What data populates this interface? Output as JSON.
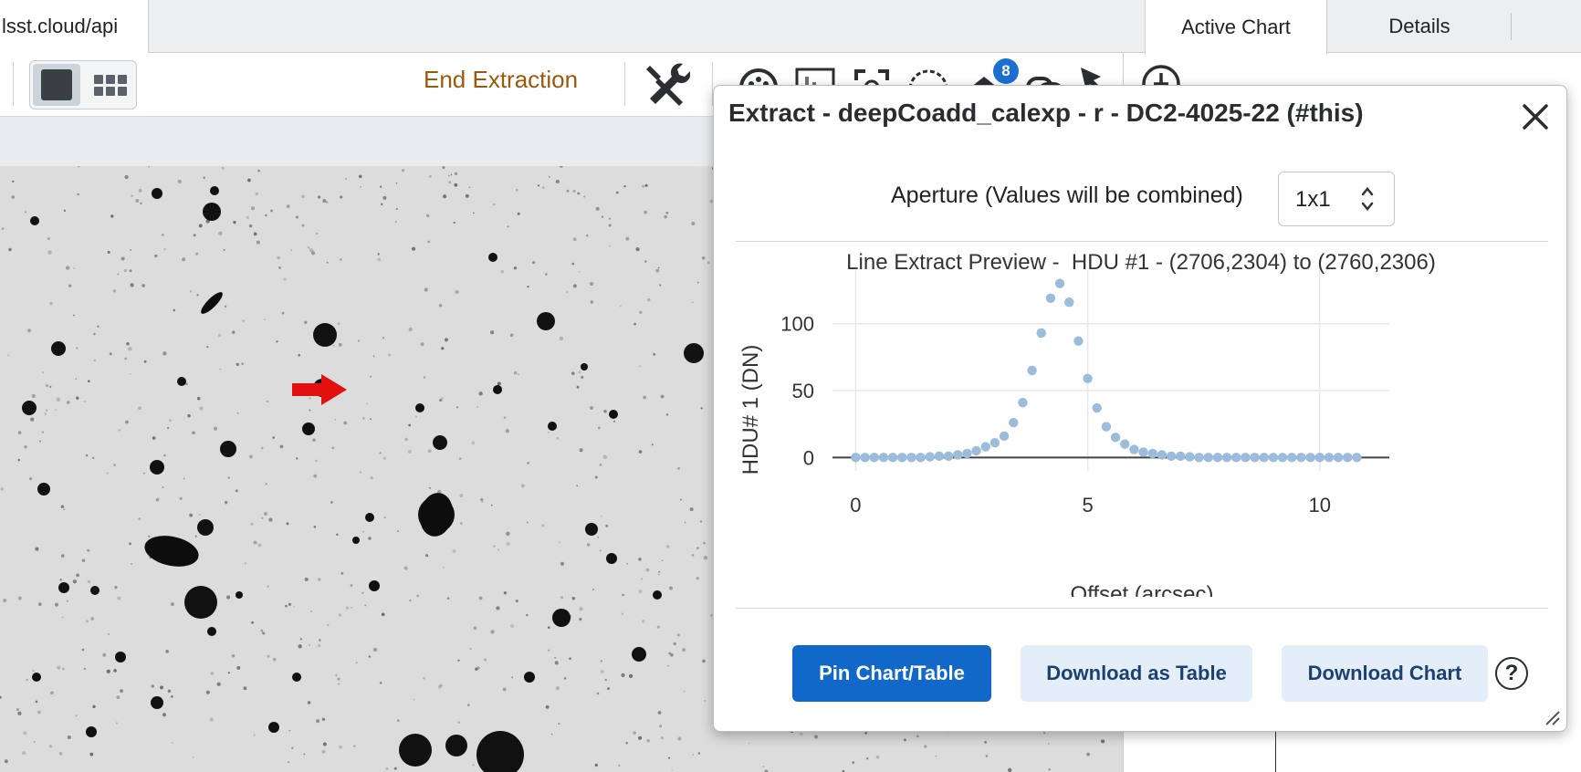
{
  "browser_tab": {
    "label": "lsst.cloud/api"
  },
  "toolbar": {
    "end_extraction_label": "End Extraction",
    "layers_badge": "8"
  },
  "right_panel": {
    "tabs": [
      "Active Chart",
      "Details"
    ]
  },
  "dialog": {
    "title": "Extract - deepCoadd_calexp - r - DC2-4025-22 (#this)",
    "aperture_label": "Aperture (Values will be combined)",
    "aperture_value": "1x1",
    "pin_label": "Pin Chart/Table",
    "download_table_label": "Download as Table",
    "download_chart_label": "Download Chart",
    "help_label": "?"
  },
  "chart_data": {
    "type": "scatter",
    "title": "Line Extract Preview -  HDU #1 - (2706,2304) to (2760,2306)",
    "xlabel": "Offset (arcsec)",
    "ylabel": "HDU# 1 (DN)",
    "xlim": [
      -0.5,
      11.5
    ],
    "ylim": [
      -10,
      140
    ],
    "xticks": [
      0,
      5,
      10
    ],
    "yticks": [
      0,
      50,
      100
    ],
    "grid": true,
    "marker_color": "#9bbcdb",
    "points": [
      [
        0.0,
        0
      ],
      [
        0.2,
        0
      ],
      [
        0.4,
        0
      ],
      [
        0.6,
        0
      ],
      [
        0.8,
        0
      ],
      [
        1.0,
        0
      ],
      [
        1.2,
        0
      ],
      [
        1.4,
        0
      ],
      [
        1.6,
        0.5
      ],
      [
        1.8,
        1
      ],
      [
        2.0,
        1
      ],
      [
        2.2,
        2
      ],
      [
        2.4,
        3
      ],
      [
        2.6,
        5
      ],
      [
        2.8,
        8
      ],
      [
        3.0,
        11
      ],
      [
        3.2,
        16
      ],
      [
        3.4,
        26
      ],
      [
        3.6,
        41
      ],
      [
        3.8,
        65
      ],
      [
        4.0,
        93
      ],
      [
        4.2,
        119
      ],
      [
        4.4,
        130
      ],
      [
        4.6,
        116
      ],
      [
        4.8,
        87
      ],
      [
        5.0,
        59
      ],
      [
        5.2,
        37
      ],
      [
        5.4,
        23
      ],
      [
        5.6,
        15
      ],
      [
        5.8,
        10
      ],
      [
        6.0,
        6
      ],
      [
        6.2,
        4
      ],
      [
        6.4,
        3
      ],
      [
        6.6,
        2
      ],
      [
        6.8,
        1
      ],
      [
        7.0,
        1
      ],
      [
        7.2,
        0.5
      ],
      [
        7.4,
        0
      ],
      [
        7.6,
        0
      ],
      [
        7.8,
        0
      ],
      [
        8.0,
        0
      ],
      [
        8.2,
        0
      ],
      [
        8.4,
        0
      ],
      [
        8.6,
        0
      ],
      [
        8.8,
        0
      ],
      [
        9.0,
        0
      ],
      [
        9.2,
        0
      ],
      [
        9.4,
        0
      ],
      [
        9.6,
        0
      ],
      [
        9.8,
        0
      ],
      [
        10.0,
        0
      ],
      [
        10.2,
        0
      ],
      [
        10.4,
        0
      ],
      [
        10.6,
        0
      ],
      [
        10.8,
        0
      ]
    ]
  }
}
